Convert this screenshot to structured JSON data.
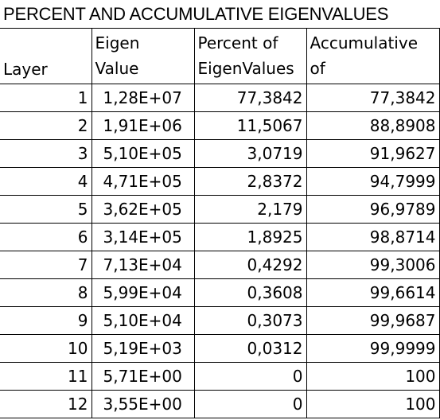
{
  "title": "PERCENT AND ACCUMULATIVE EIGENVALUES",
  "headers": {
    "layer": "Layer",
    "eigen_line1": "Eigen",
    "eigen_line2": "Value",
    "percent_line1": "Percent of",
    "percent_line2": "EigenValues",
    "accum_line1": "Accumulative",
    "accum_line2": "of"
  },
  "rows": [
    {
      "layer": "1",
      "eigen": "1,28E+07",
      "percent": "77,3842",
      "accum": "77,3842"
    },
    {
      "layer": "2",
      "eigen": "1,91E+06",
      "percent": "11,5067",
      "accum": "88,8908"
    },
    {
      "layer": "3",
      "eigen": "5,10E+05",
      "percent": "3,0719",
      "accum": "91,9627"
    },
    {
      "layer": "4",
      "eigen": "4,71E+05",
      "percent": "2,8372",
      "accum": "94,7999"
    },
    {
      "layer": "5",
      "eigen": "3,62E+05",
      "percent": "2,179",
      "accum": "96,9789"
    },
    {
      "layer": "6",
      "eigen": "3,14E+05",
      "percent": "1,8925",
      "accum": "98,8714"
    },
    {
      "layer": "7",
      "eigen": "7,13E+04",
      "percent": "0,4292",
      "accum": "99,3006"
    },
    {
      "layer": "8",
      "eigen": "5,99E+04",
      "percent": "0,3608",
      "accum": "99,6614"
    },
    {
      "layer": "9",
      "eigen": "5,10E+04",
      "percent": "0,3073",
      "accum": "99,9687"
    },
    {
      "layer": "10",
      "eigen": "5,19E+03",
      "percent": "0,0312",
      "accum": "99,9999"
    },
    {
      "layer": "11",
      "eigen": "5,71E+00",
      "percent": "0",
      "accum": "100"
    },
    {
      "layer": "12",
      "eigen": "3,55E+00",
      "percent": "0",
      "accum": "100"
    }
  ]
}
